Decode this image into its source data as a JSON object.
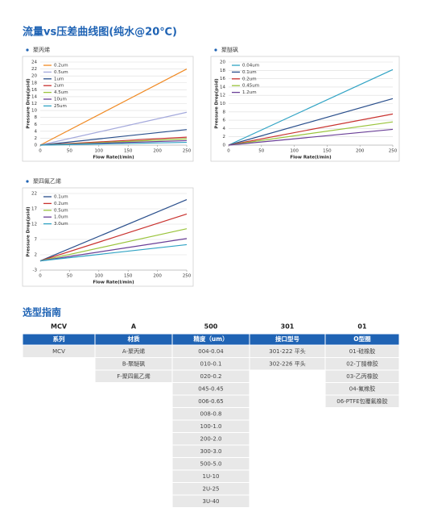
{
  "header": {
    "title": "流量vs压差曲线图(纯水@20℃)"
  },
  "chart_data": [
    {
      "type": "line",
      "title": "聚丙烯",
      "x_label": "Flow Rate(l/min)",
      "y_label": "Pressure Drop(psid)",
      "x": [
        0,
        250
      ],
      "xlim": [
        0,
        250
      ],
      "xticks": [
        0,
        50,
        100,
        150,
        200,
        250
      ],
      "ylim": [
        0,
        24
      ],
      "yticks": [
        0,
        2,
        4,
        6,
        8,
        10,
        12,
        14,
        16,
        18,
        20,
        22,
        24
      ],
      "grid": true,
      "legend": "upper left",
      "series": [
        {
          "name": "0.2um",
          "color": "#f08a24",
          "values": [
            0,
            22
          ]
        },
        {
          "name": "0.5um",
          "color": "#a4a9dc",
          "values": [
            0,
            9.5
          ]
        },
        {
          "name": "1um",
          "color": "#2a4f8c",
          "values": [
            0,
            4.5
          ]
        },
        {
          "name": "2um",
          "color": "#c9322f",
          "values": [
            0,
            2.3
          ]
        },
        {
          "name": "4.5um",
          "color": "#9ac43c",
          "values": [
            0,
            1.8
          ]
        },
        {
          "name": "10um",
          "color": "#6a3f97",
          "values": [
            0,
            1.3
          ]
        },
        {
          "name": "25um",
          "color": "#30a3c4",
          "values": [
            0,
            0.8
          ]
        }
      ]
    },
    {
      "type": "line",
      "title": "聚醚砜",
      "x_label": "Flow Rate(l/min)",
      "y_label": "Pressure Drop(psid)",
      "x": [
        0,
        250
      ],
      "xlim": [
        0,
        250
      ],
      "xticks": [
        0,
        50,
        100,
        150,
        200,
        250
      ],
      "ylim": [
        0,
        20
      ],
      "yticks": [
        0,
        2,
        4,
        6,
        8,
        10,
        12,
        14,
        16,
        18,
        20
      ],
      "grid": true,
      "legend": "upper left",
      "series": [
        {
          "name": "0.04um",
          "color": "#30a3c4",
          "values": [
            0,
            18.2
          ]
        },
        {
          "name": "0.1um",
          "color": "#2a4f8c",
          "values": [
            0,
            11.2
          ]
        },
        {
          "name": "0.2um",
          "color": "#c9322f",
          "values": [
            0,
            7.5
          ]
        },
        {
          "name": "0.45um",
          "color": "#9ac43c",
          "values": [
            0,
            5.6
          ]
        },
        {
          "name": "1.2um",
          "color": "#6a3f97",
          "values": [
            0,
            3.8
          ]
        }
      ]
    },
    {
      "type": "line",
      "title": "聚四氟乙烯",
      "x_label": "Flow Rate(l/min)",
      "y_label": "Pressure Drop(psid)",
      "x": [
        0,
        250
      ],
      "xlim": [
        0,
        250
      ],
      "xticks": [
        0,
        50,
        100,
        150,
        200,
        250
      ],
      "ylim": [
        -3,
        22
      ],
      "yticks": [
        -3,
        2,
        7,
        12,
        17,
        22
      ],
      "grid": true,
      "legend": "upper left",
      "series": [
        {
          "name": "0.1um",
          "color": "#2a4f8c",
          "values": [
            0,
            20
          ]
        },
        {
          "name": "0.2um",
          "color": "#c9322f",
          "values": [
            0,
            15.3
          ]
        },
        {
          "name": "0.5um",
          "color": "#9ac43c",
          "values": [
            0,
            10.5
          ]
        },
        {
          "name": "1.0um",
          "color": "#6a3f97",
          "values": [
            0,
            7.3
          ]
        },
        {
          "name": "3.0um",
          "color": "#30a3c4",
          "values": [
            0,
            5.3
          ]
        }
      ]
    }
  ],
  "guide": {
    "title": "选型指南",
    "columns": [
      {
        "code": "MCV",
        "header": "系列",
        "items": [
          "MCV"
        ]
      },
      {
        "code": "A",
        "header": "材质",
        "items": [
          "A-聚丙烯",
          "B-聚醚砜",
          "F-聚四氟乙烯"
        ]
      },
      {
        "code": "500",
        "header": "精度（um）",
        "items": [
          "004-0.04",
          "010-0.1",
          "020-0.2",
          "045-0.45",
          "006-0.65",
          "008-0.8",
          "100-1.0",
          "200-2.0",
          "300-3.0",
          "500-5.0",
          "1U-10",
          "2U-25",
          "3U-40"
        ]
      },
      {
        "code": "301",
        "header": "接口型号",
        "items": [
          "301-222 平头",
          "302-226 平头"
        ]
      },
      {
        "code": "01",
        "header": "O型圈",
        "items": [
          "01-硅橡胶",
          "02-丁腈橡胶",
          "03-乙丙橡胶",
          "04-氟橡胶",
          "06-PTFE包覆氟橡胶"
        ]
      }
    ]
  }
}
